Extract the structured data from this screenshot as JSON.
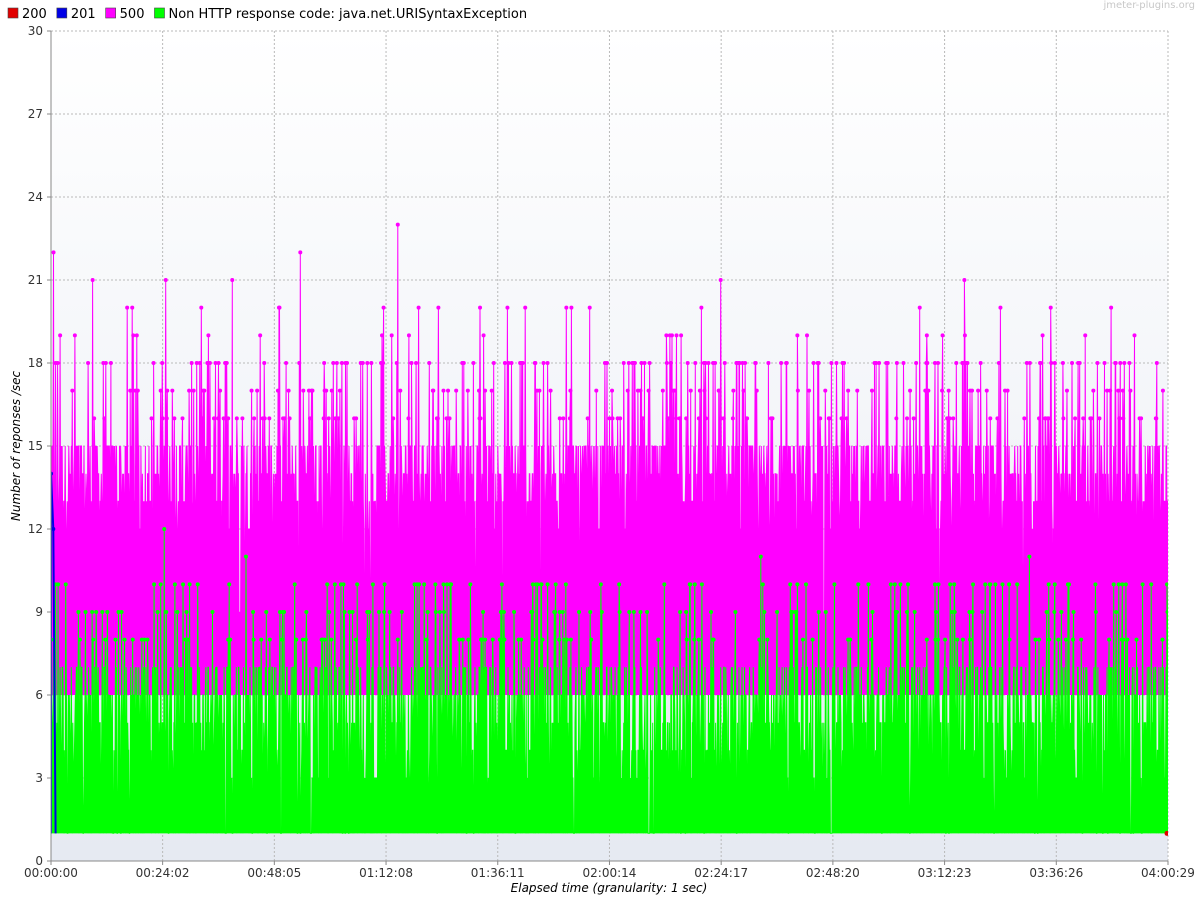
{
  "watermark": "jmeter-plugins.org",
  "chart_data": {
    "type": "line",
    "title": "",
    "xlabel": "Elapsed time (granularity: 1 sec)",
    "ylabel": "Number of reponses /sec",
    "ylim": [
      0,
      30
    ],
    "yticks": [
      0,
      3,
      6,
      9,
      12,
      15,
      18,
      21,
      24,
      27,
      30
    ],
    "xlim_seconds": [
      0,
      14429
    ],
    "xticks": [
      {
        "label": "00:00:00",
        "seconds": 0
      },
      {
        "label": "00:24:02",
        "seconds": 1442
      },
      {
        "label": "00:48:05",
        "seconds": 2885
      },
      {
        "label": "01:12:08",
        "seconds": 4328
      },
      {
        "label": "01:36:11",
        "seconds": 5771
      },
      {
        "label": "02:00:14",
        "seconds": 7214
      },
      {
        "label": "02:24:17",
        "seconds": 8657
      },
      {
        "label": "02:48:20",
        "seconds": 10100
      },
      {
        "label": "03:12:23",
        "seconds": 11543
      },
      {
        "label": "03:36:26",
        "seconds": 12986
      },
      {
        "label": "04:00:29",
        "seconds": 14429
      }
    ],
    "grid": true,
    "legend_position": "top-left",
    "series": [
      {
        "name": "200",
        "color": "#e10000",
        "approx_range": [
          1,
          1
        ],
        "peaks": [
          {
            "x": 14429,
            "y": 1
          }
        ]
      },
      {
        "name": "201",
        "color": "#0000e6",
        "approx_range": [
          1,
          14
        ],
        "peaks": [
          {
            "x": 0,
            "y": 14
          },
          {
            "x": 30,
            "y": 12
          }
        ]
      },
      {
        "name": "500",
        "color": "#ff00ff",
        "approx_range": [
          6,
          23
        ],
        "typical_band": [
          12,
          16
        ],
        "peaks": [
          {
            "x": 30,
            "y": 22
          },
          {
            "x": 540,
            "y": 21
          },
          {
            "x": 1480,
            "y": 21
          },
          {
            "x": 2340,
            "y": 21
          },
          {
            "x": 3220,
            "y": 22
          },
          {
            "x": 4480,
            "y": 23
          },
          {
            "x": 8650,
            "y": 21
          },
          {
            "x": 11800,
            "y": 21
          }
        ]
      },
      {
        "name": "Non HTTP response code: java.net.URISyntaxException",
        "color": "#00ff00",
        "approx_range": [
          1,
          12
        ],
        "typical_band": [
          2,
          8
        ],
        "peaks": [
          {
            "x": 1460,
            "y": 12
          },
          {
            "x": 2520,
            "y": 11
          },
          {
            "x": 9170,
            "y": 11
          },
          {
            "x": 12640,
            "y": 11
          }
        ]
      }
    ]
  }
}
